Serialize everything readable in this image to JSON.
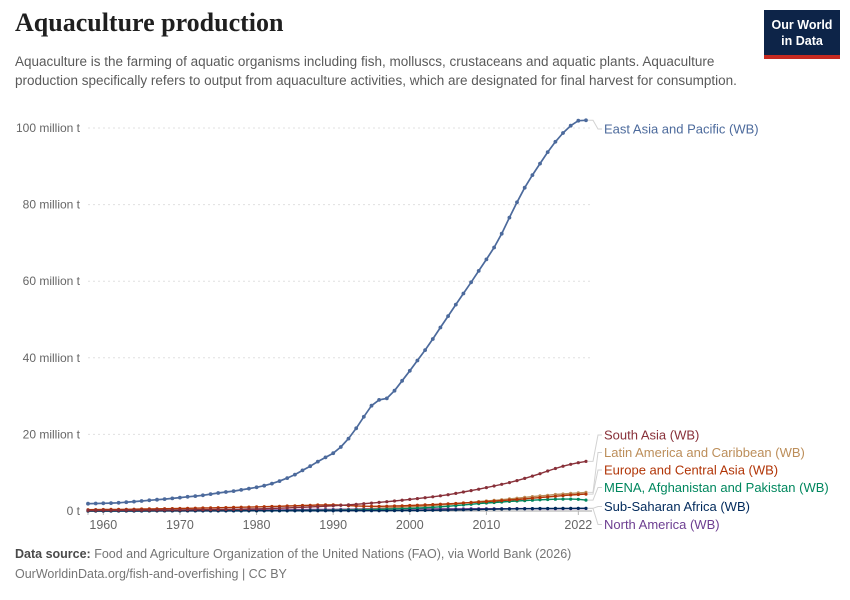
{
  "header": {
    "title": "Aquaculture production",
    "subtitle": "Aquaculture is the farming of aquatic organisms including fish, molluscs, crustaceans and aquatic plants. Aquaculture production specifically refers to output from aquaculture activities, which are designated for final harvest for consumption.",
    "logo": {
      "line1": "Our World",
      "line2": "in Data",
      "bg_color": "#0D2448",
      "accent_color": "#C62A21"
    }
  },
  "footer": {
    "source_label": "Data source:",
    "source_text": "Food and Agriculture Organization of the United Nations (FAO), via World Bank (2026)",
    "license_url": "OurWorldinData.org/fish-and-overfishing",
    "license_suffix": " | CC BY"
  },
  "chart_data": {
    "type": "line",
    "title": "Aquaculture production",
    "unit": "million t",
    "xlabel": "",
    "ylabel": "",
    "grid": "horizontal-dashed",
    "legend_position": "line-end-labels-right",
    "ylim": [
      0,
      106
    ],
    "xlim": [
      1958,
      2023
    ],
    "x_ticks": [
      1960,
      1970,
      1980,
      1990,
      2000,
      2010,
      2022
    ],
    "y_ticks": [
      {
        "value": 0,
        "label": "0 t"
      },
      {
        "value": 20,
        "label": "20 million t"
      },
      {
        "value": 40,
        "label": "40 million t"
      },
      {
        "value": 60,
        "label": "60 million t"
      },
      {
        "value": 80,
        "label": "80 million t"
      },
      {
        "value": 100,
        "label": "100 million t"
      }
    ],
    "x": [
      1958,
      1959,
      1960,
      1961,
      1962,
      1963,
      1964,
      1965,
      1966,
      1967,
      1968,
      1969,
      1970,
      1971,
      1972,
      1973,
      1974,
      1975,
      1976,
      1977,
      1978,
      1979,
      1980,
      1981,
      1982,
      1983,
      1984,
      1985,
      1986,
      1987,
      1988,
      1989,
      1990,
      1991,
      1992,
      1993,
      1994,
      1995,
      1996,
      1997,
      1998,
      1999,
      2000,
      2001,
      2002,
      2003,
      2004,
      2005,
      2006,
      2007,
      2008,
      2009,
      2010,
      2011,
      2012,
      2013,
      2014,
      2015,
      2016,
      2017,
      2018,
      2019,
      2020,
      2021,
      2022,
      2023
    ],
    "series": [
      {
        "name": "East Asia and Pacific (WB)",
        "color": "#4C6A9C",
        "values": [
          1.9,
          1.95,
          2.0,
          2.05,
          2.15,
          2.3,
          2.45,
          2.6,
          2.8,
          2.95,
          3.1,
          3.3,
          3.5,
          3.7,
          3.9,
          4.1,
          4.4,
          4.7,
          4.95,
          5.2,
          5.5,
          5.85,
          6.2,
          6.6,
          7.15,
          7.8,
          8.6,
          9.5,
          10.6,
          11.7,
          12.9,
          14.0,
          15.1,
          16.7,
          18.9,
          21.6,
          24.6,
          27.5,
          29.0,
          29.4,
          31.4,
          34.0,
          36.6,
          39.3,
          42.0,
          44.9,
          47.9,
          50.9,
          53.9,
          56.8,
          59.7,
          62.7,
          65.7,
          68.8,
          72.4,
          76.6,
          80.6,
          84.4,
          87.7,
          90.7,
          93.7,
          96.4,
          98.7,
          100.6,
          101.9,
          102.0
        ]
      },
      {
        "name": "South Asia (WB)",
        "color": "#883039",
        "values": [
          0.15,
          0.16,
          0.17,
          0.18,
          0.19,
          0.2,
          0.21,
          0.22,
          0.23,
          0.25,
          0.26,
          0.28,
          0.29,
          0.31,
          0.33,
          0.35,
          0.37,
          0.39,
          0.42,
          0.45,
          0.48,
          0.52,
          0.56,
          0.61,
          0.67,
          0.73,
          0.8,
          0.88,
          0.97,
          1.06,
          1.16,
          1.26,
          1.37,
          1.49,
          1.62,
          1.76,
          1.91,
          2.07,
          2.24,
          2.42,
          2.61,
          2.81,
          3.02,
          3.24,
          3.47,
          3.72,
          3.98,
          4.26,
          4.6,
          4.95,
          5.32,
          5.7,
          6.1,
          6.52,
          6.96,
          7.42,
          7.95,
          8.5,
          9.1,
          9.75,
          10.45,
          11.1,
          11.7,
          12.2,
          12.6,
          12.95
        ]
      },
      {
        "name": "Latin America and Caribbean (WB)",
        "color": "#BC8E5A",
        "values": [
          0.01,
          0.01,
          0.01,
          0.01,
          0.02,
          0.02,
          0.02,
          0.02,
          0.02,
          0.03,
          0.03,
          0.03,
          0.03,
          0.04,
          0.04,
          0.04,
          0.05,
          0.05,
          0.06,
          0.07,
          0.07,
          0.08,
          0.09,
          0.1,
          0.11,
          0.13,
          0.15,
          0.17,
          0.2,
          0.23,
          0.26,
          0.3,
          0.34,
          0.39,
          0.44,
          0.5,
          0.57,
          0.64,
          0.72,
          0.81,
          0.9,
          1.0,
          1.1,
          1.2,
          1.31,
          1.43,
          1.56,
          1.7,
          1.85,
          2.05,
          2.25,
          2.45,
          2.6,
          2.78,
          2.95,
          3.15,
          3.35,
          3.55,
          3.75,
          3.95,
          4.1,
          4.3,
          4.45,
          4.6,
          4.72,
          4.85
        ]
      },
      {
        "name": "Europe and Central Asia (WB)",
        "color": "#B13507",
        "values": [
          0.35,
          0.37,
          0.39,
          0.41,
          0.43,
          0.45,
          0.48,
          0.51,
          0.54,
          0.57,
          0.6,
          0.63,
          0.66,
          0.7,
          0.74,
          0.78,
          0.82,
          0.86,
          0.9,
          0.94,
          0.98,
          1.03,
          1.08,
          1.13,
          1.18,
          1.24,
          1.3,
          1.36,
          1.43,
          1.5,
          1.56,
          1.6,
          1.62,
          1.54,
          1.42,
          1.32,
          1.25,
          1.22,
          1.22,
          1.26,
          1.31,
          1.37,
          1.44,
          1.51,
          1.59,
          1.68,
          1.77,
          1.87,
          1.97,
          2.08,
          2.2,
          2.32,
          2.45,
          2.58,
          2.72,
          2.86,
          3.01,
          3.17,
          3.33,
          3.5,
          3.67,
          3.85,
          4.02,
          4.18,
          4.3,
          4.4
        ]
      },
      {
        "name": "MENA, Afghanistan and Pakistan (WB)",
        "color": "#00875E",
        "values": [
          0.02,
          0.02,
          0.02,
          0.02,
          0.03,
          0.03,
          0.03,
          0.03,
          0.03,
          0.04,
          0.04,
          0.04,
          0.04,
          0.04,
          0.05,
          0.05,
          0.05,
          0.05,
          0.05,
          0.06,
          0.06,
          0.06,
          0.06,
          0.07,
          0.07,
          0.08,
          0.09,
          0.1,
          0.11,
          0.12,
          0.14,
          0.16,
          0.18,
          0.21,
          0.24,
          0.27,
          0.31,
          0.35,
          0.4,
          0.46,
          0.52,
          0.59,
          0.67,
          0.76,
          0.86,
          0.97,
          1.1,
          1.24,
          1.4,
          1.58,
          1.76,
          1.92,
          2.08,
          2.22,
          2.36,
          2.5,
          2.62,
          2.72,
          2.82,
          2.92,
          3.0,
          3.08,
          3.12,
          3.1,
          3.05,
          2.85
        ]
      },
      {
        "name": "Sub-Saharan Africa (WB)",
        "color": "#00295B",
        "values": [
          0.01,
          0.01,
          0.01,
          0.01,
          0.01,
          0.01,
          0.01,
          0.01,
          0.02,
          0.02,
          0.02,
          0.02,
          0.02,
          0.02,
          0.02,
          0.03,
          0.03,
          0.03,
          0.03,
          0.03,
          0.03,
          0.04,
          0.04,
          0.04,
          0.04,
          0.04,
          0.05,
          0.05,
          0.05,
          0.05,
          0.06,
          0.06,
          0.06,
          0.07,
          0.07,
          0.07,
          0.08,
          0.08,
          0.09,
          0.09,
          0.1,
          0.11,
          0.12,
          0.13,
          0.15,
          0.17,
          0.2,
          0.24,
          0.28,
          0.32,
          0.36,
          0.4,
          0.44,
          0.48,
          0.52,
          0.55,
          0.58,
          0.61,
          0.63,
          0.65,
          0.66,
          0.67,
          0.68,
          0.69,
          0.7,
          0.71
        ]
      },
      {
        "name": "North America (WB)",
        "color": "#6D3E91",
        "values": [
          0.08,
          0.08,
          0.09,
          0.09,
          0.1,
          0.1,
          0.11,
          0.11,
          0.12,
          0.12,
          0.13,
          0.14,
          0.14,
          0.15,
          0.16,
          0.17,
          0.18,
          0.19,
          0.2,
          0.21,
          0.22,
          0.24,
          0.25,
          0.27,
          0.28,
          0.3,
          0.32,
          0.34,
          0.36,
          0.38,
          0.4,
          0.42,
          0.43,
          0.44,
          0.45,
          0.46,
          0.47,
          0.48,
          0.49,
          0.5,
          0.51,
          0.52,
          0.53,
          0.54,
          0.55,
          0.56,
          0.57,
          0.57,
          0.58,
          0.58,
          0.59,
          0.59,
          0.6,
          0.6,
          0.61,
          0.61,
          0.62,
          0.62,
          0.61,
          0.6,
          0.6,
          0.61,
          0.62,
          0.63,
          0.64,
          0.65
        ]
      }
    ]
  }
}
